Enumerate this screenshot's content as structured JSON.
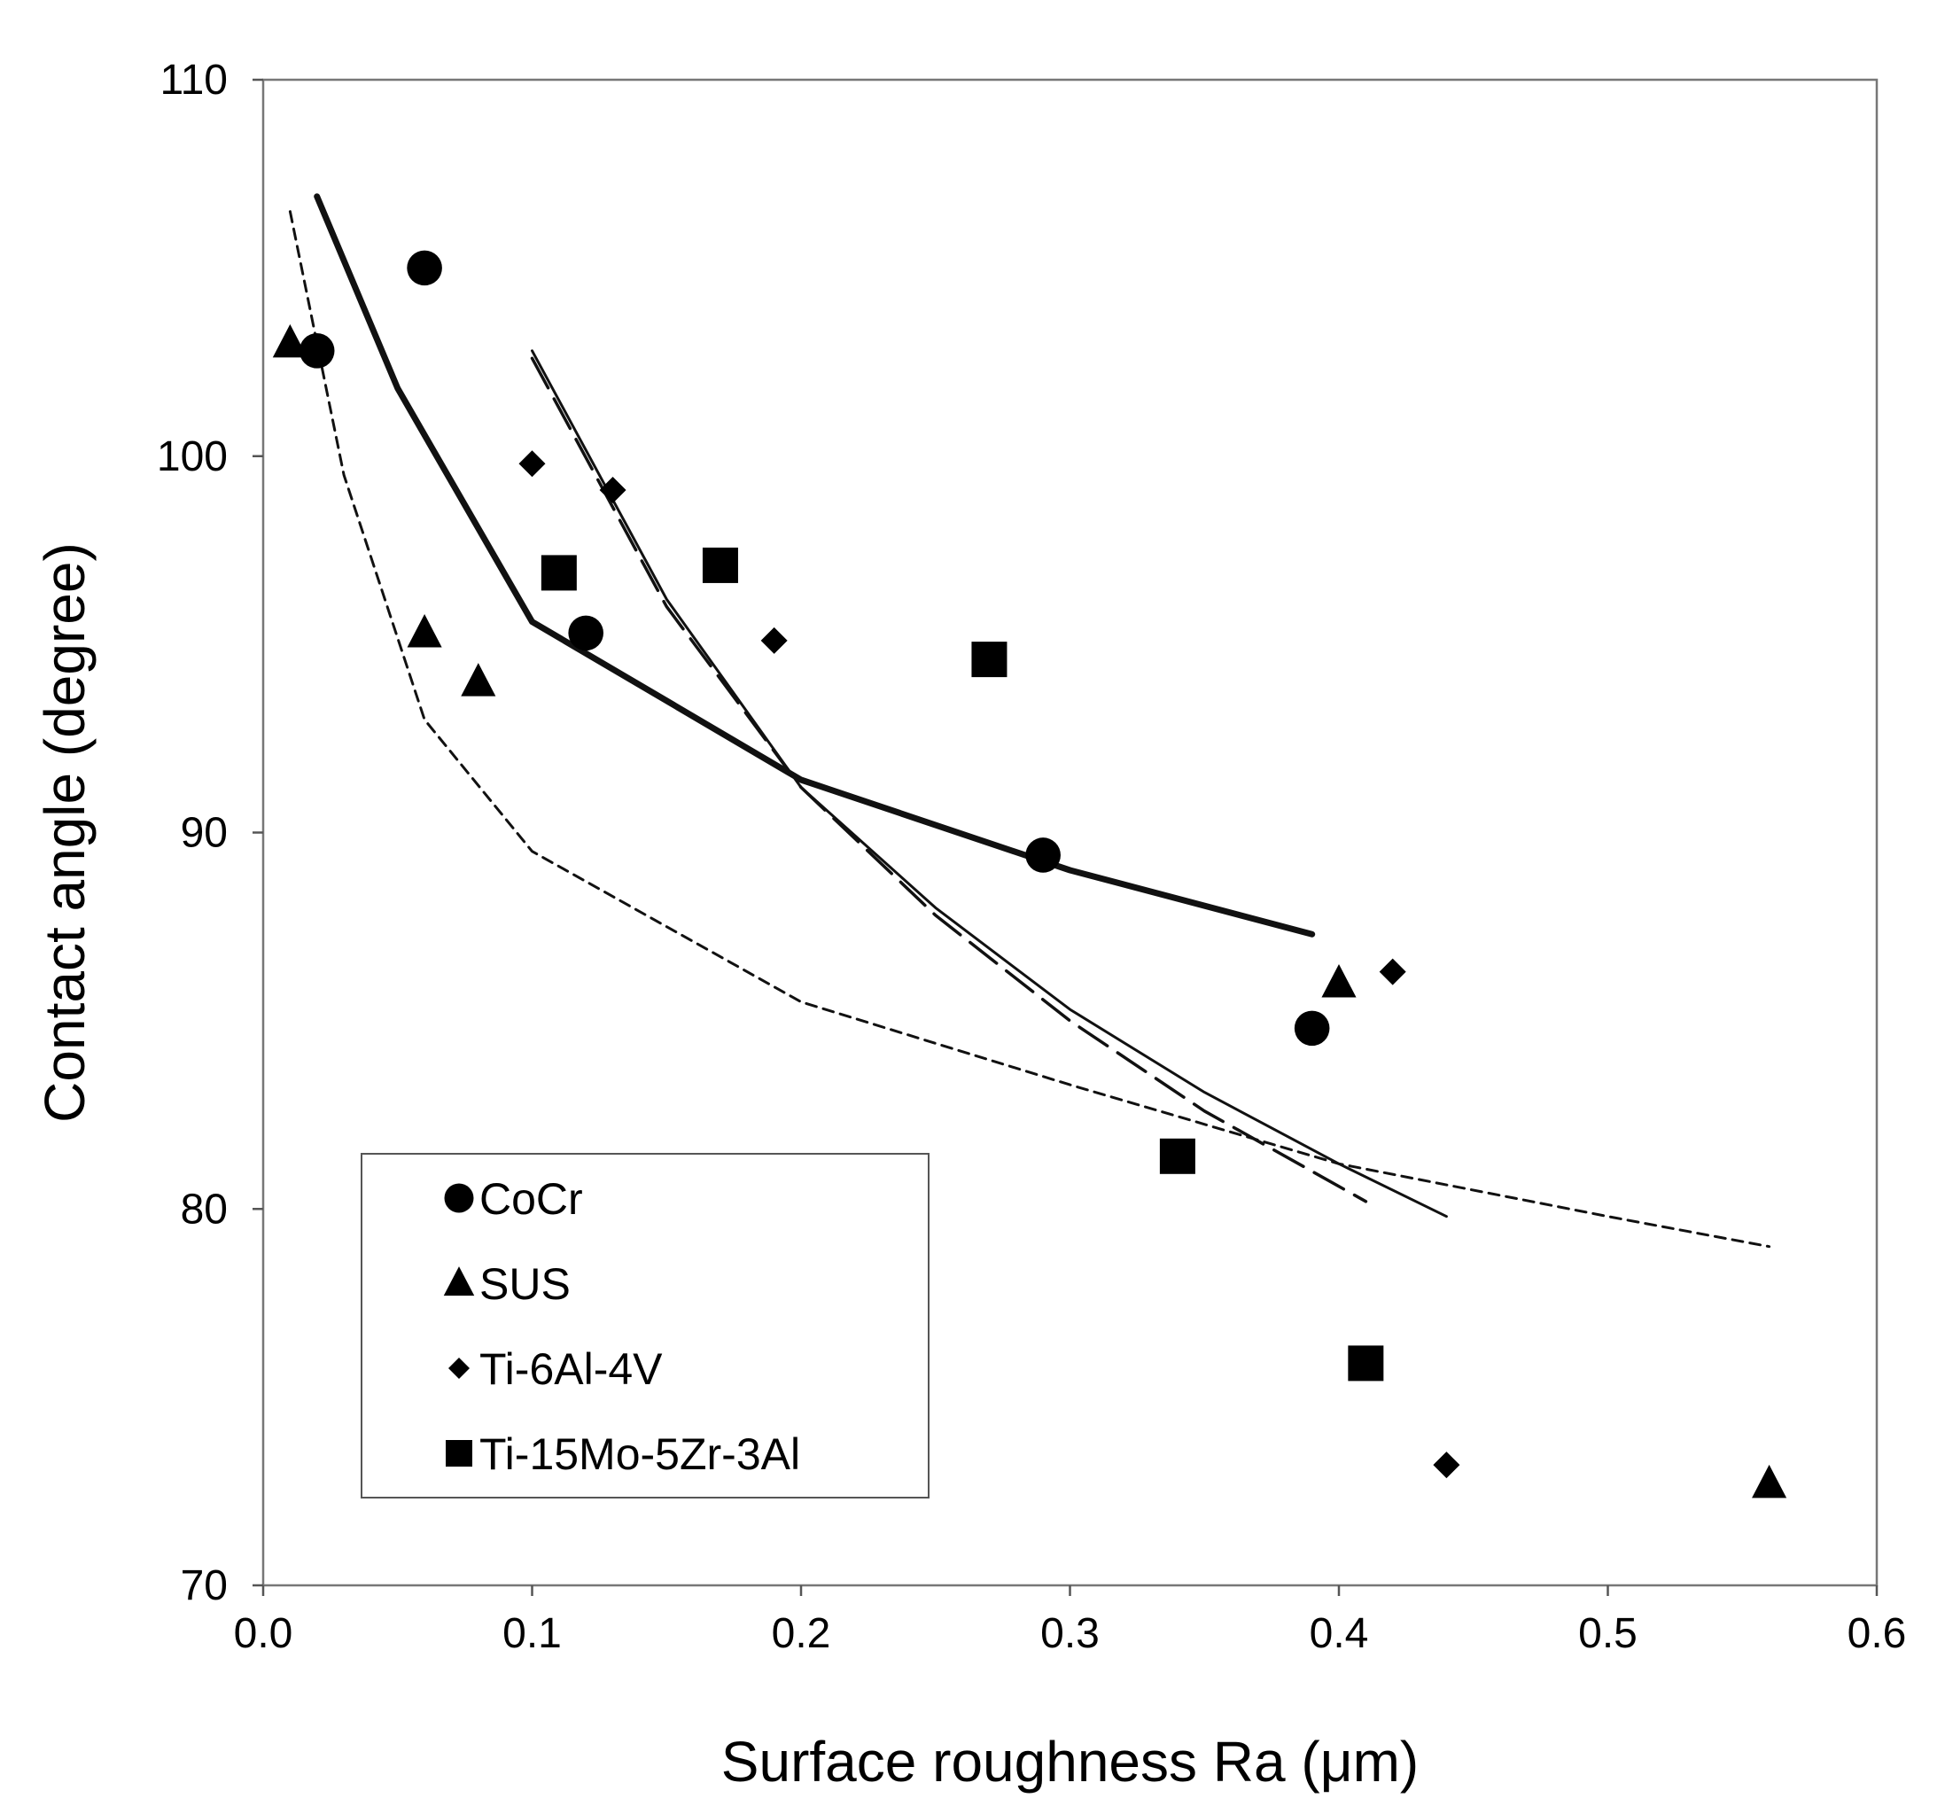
{
  "chart_data": {
    "type": "scatter",
    "title": "",
    "xlabel": "Surface roughness Ra (μm)",
    "ylabel": "Contact angle (degree)",
    "xlim": [
      0.0,
      0.6
    ],
    "ylim": [
      70,
      110
    ],
    "x_ticks": [
      "0.0",
      "0.1",
      "0.2",
      "0.3",
      "0.4",
      "0.5",
      "0.6"
    ],
    "y_ticks": [
      "70",
      "80",
      "90",
      "100",
      "110"
    ],
    "grid": false,
    "legend_position": "bottom-left",
    "series": [
      {
        "name": "CoCr",
        "marker": "circle",
        "points": [
          [
            0.02,
            102.8
          ],
          [
            0.06,
            105.0
          ],
          [
            0.12,
            95.3
          ],
          [
            0.29,
            89.4
          ],
          [
            0.39,
            84.8
          ]
        ],
        "fit": {
          "style": "thick-solid",
          "x_range": [
            0.02,
            0.39
          ],
          "curve": [
            [
              0.02,
              106.9
            ],
            [
              0.05,
              101.8
            ],
            [
              0.1,
              95.6
            ],
            [
              0.2,
              91.4
            ],
            [
              0.3,
              89.0
            ],
            [
              0.39,
              87.3
            ]
          ]
        }
      },
      {
        "name": "SUS",
        "marker": "triangle",
        "points": [
          [
            0.01,
            103.0
          ],
          [
            0.06,
            95.3
          ],
          [
            0.08,
            94.0
          ],
          [
            0.4,
            86.0
          ],
          [
            0.56,
            72.7
          ]
        ],
        "fit": {
          "style": "short-dashed",
          "x_range": [
            0.01,
            0.56
          ],
          "curve": [
            [
              0.01,
              106.5
            ],
            [
              0.03,
              99.5
            ],
            [
              0.06,
              93.0
            ],
            [
              0.1,
              89.5
            ],
            [
              0.2,
              85.5
            ],
            [
              0.3,
              83.3
            ],
            [
              0.4,
              81.2
            ],
            [
              0.5,
              79.8
            ],
            [
              0.56,
              79.0
            ]
          ]
        }
      },
      {
        "name": "Ti-6Al-4V",
        "marker": "diamond",
        "points": [
          [
            0.1,
            99.8
          ],
          [
            0.13,
            99.1
          ],
          [
            0.19,
            95.1
          ],
          [
            0.42,
            86.3
          ],
          [
            0.44,
            73.2
          ]
        ],
        "fit": {
          "style": "long-dashed",
          "x_range": [
            0.1,
            0.41
          ],
          "curve": [
            [
              0.1,
              102.6
            ],
            [
              0.15,
              96.0
            ],
            [
              0.2,
              91.2
            ],
            [
              0.25,
              87.8
            ],
            [
              0.3,
              85.0
            ],
            [
              0.35,
              82.6
            ],
            [
              0.41,
              80.2
            ]
          ]
        }
      },
      {
        "name": "Ti-15Mo-5Zr-3Al",
        "marker": "square",
        "points": [
          [
            0.11,
            96.9
          ],
          [
            0.17,
            97.1
          ],
          [
            0.27,
            94.6
          ],
          [
            0.34,
            81.4
          ],
          [
            0.41,
            75.9
          ]
        ],
        "fit": {
          "style": "thin-solid",
          "x_range": [
            0.1,
            0.44
          ],
          "curve": [
            [
              0.1,
              102.8
            ],
            [
              0.15,
              96.2
            ],
            [
              0.2,
              91.2
            ],
            [
              0.25,
              88.0
            ],
            [
              0.3,
              85.3
            ],
            [
              0.35,
              83.1
            ],
            [
              0.4,
              81.2
            ],
            [
              0.44,
              79.8
            ]
          ]
        }
      }
    ]
  },
  "legend": {
    "items": [
      {
        "label": "CoCr",
        "marker": "circle"
      },
      {
        "label": "SUS",
        "marker": "triangle"
      },
      {
        "label": "Ti-6Al-4V",
        "marker": "diamond"
      },
      {
        "label": "Ti-15Mo-5Zr-3Al",
        "marker": "square"
      }
    ]
  }
}
